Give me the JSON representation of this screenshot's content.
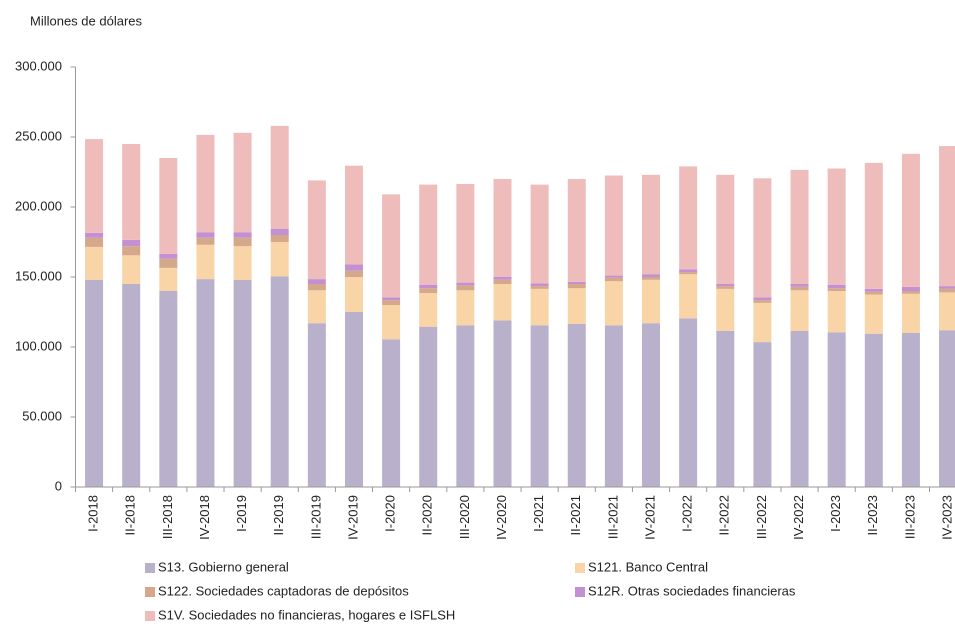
{
  "chart_data": {
    "type": "stacked-bar",
    "y_axis_title": "Millones de dólares",
    "categories": [
      "I-2018",
      "II-2018",
      "III-2018",
      "IV-2018",
      "I-2019",
      "II-2019",
      "III-2019",
      "IV-2019",
      "I-2020",
      "II-2020",
      "III-2020",
      "IV-2020",
      "I-2021",
      "II-2021",
      "III-2021",
      "IV-2021",
      "I-2022",
      "II-2022",
      "III-2022",
      "IV-2022",
      "I-2023",
      "II-2023",
      "III-2023",
      "IV-2023"
    ],
    "series": [
      {
        "name": "S13. Gobierno general",
        "color": "#b9b0cc",
        "values": [
          148000,
          145000,
          140000,
          148500,
          148000,
          150500,
          117000,
          125000,
          105500,
          114500,
          115500,
          119000,
          115500,
          116500,
          115500,
          117000,
          120500,
          111500,
          103500,
          111500,
          110500,
          109500,
          110000,
          112000
        ]
      },
      {
        "name": "S121. Banco Central",
        "color": "#f8d4a6",
        "values": [
          23500,
          20500,
          16500,
          24500,
          24000,
          24500,
          23500,
          25000,
          24500,
          24000,
          25000,
          26000,
          26000,
          25500,
          31500,
          31000,
          31500,
          30000,
          28000,
          29000,
          29500,
          28000,
          28000,
          27000
        ]
      },
      {
        "name": "S122. Sociedades captadoras de depósitos",
        "color": "#d5a88c",
        "values": [
          6500,
          6500,
          6500,
          5000,
          6000,
          5000,
          4500,
          4500,
          3500,
          3500,
          3500,
          3000,
          2000,
          3000,
          2500,
          2000,
          1500,
          2000,
          2000,
          2500,
          2000,
          2000,
          2000,
          2500
        ]
      },
      {
        "name": "S12R. Otras sociedades financieras",
        "color": "#c391d1",
        "values": [
          3500,
          4500,
          3500,
          4000,
          4000,
          4500,
          3500,
          4500,
          2000,
          2500,
          2000,
          2000,
          2000,
          1500,
          1500,
          2000,
          2000,
          1500,
          2000,
          2000,
          2500,
          2000,
          3000,
          2000
        ]
      },
      {
        "name": "S1V. Sociedades no financieras, hogares e ISFLSH",
        "color": "#efbcbc",
        "values": [
          67000,
          68500,
          68500,
          69500,
          71000,
          73500,
          70500,
          70500,
          73500,
          71500,
          70500,
          70000,
          70500,
          73500,
          71500,
          71000,
          73500,
          78000,
          85000,
          81500,
          83000,
          90000,
          95000,
          100000
        ]
      }
    ],
    "ylim": [
      0,
      300000
    ],
    "yticks": [
      0,
      {
        "value": 50000,
        "label": "50.000"
      },
      {
        "value": 100000,
        "label": "100.000"
      },
      {
        "value": 150000,
        "label": "150.000"
      },
      {
        "value": 200000,
        "label": "200.000"
      },
      {
        "value": 250000,
        "label": "250.000"
      },
      {
        "value": 300000,
        "label": "300.000"
      }
    ]
  }
}
